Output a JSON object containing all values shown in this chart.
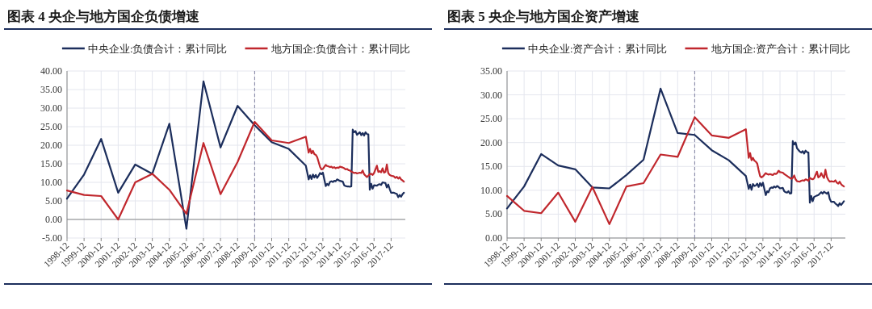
{
  "chart_data": [
    {
      "type": "line",
      "title": "图表 4 央企与地方国企负债增速",
      "legend": "top",
      "grid": true,
      "x": [
        "1998-12",
        "1999-12",
        "2000-12",
        "2001-12",
        "2002-12",
        "2003-12",
        "2004-12",
        "2005-12",
        "2006-12",
        "2007-12",
        "2008-12",
        "2009-12",
        "2010-12",
        "2011-12",
        "2012-12",
        "2013-02",
        "2013-03",
        "2013-04",
        "2013-05",
        "2013-06",
        "2013-07",
        "2013-08",
        "2013-09",
        "2013-10",
        "2013-11",
        "2013-12",
        "2014-02",
        "2014-03",
        "2014-04",
        "2014-05",
        "2014-06",
        "2014-07",
        "2014-08",
        "2014-09",
        "2014-10",
        "2014-11",
        "2014-12",
        "2015-02",
        "2015-03",
        "2015-04",
        "2015-05",
        "2015-06",
        "2015-07",
        "2015-08",
        "2015-09",
        "2015-10",
        "2015-11",
        "2015-12",
        "2016-02",
        "2016-03",
        "2016-04",
        "2016-05",
        "2016-06",
        "2016-07",
        "2016-08",
        "2016-09",
        "2016-10",
        "2016-11",
        "2016-12",
        "2017-02",
        "2017-03",
        "2017-04",
        "2017-05",
        "2017-06",
        "2017-07",
        "2017-08",
        "2017-09",
        "2017-10",
        "2017-11",
        "2017-12",
        "2018-02",
        "2018-03",
        "2018-04",
        "2018-05",
        "2018-06",
        "2018-07",
        "2018-08",
        "2018-09"
      ],
      "series": [
        {
          "name": "中央企业:负债合计：累计同比",
          "color": "#1c2e5c",
          "values": [
            5.6,
            12.1,
            21.7,
            7.2,
            14.8,
            12.3,
            25.8,
            -2.5,
            37.2,
            19.4,
            30.6,
            25.4,
            20.8,
            19.0,
            14.5,
            10.8,
            11.9,
            10.9,
            12.1,
            11.3,
            12.0,
            11.2,
            11.8,
            12.5,
            12.2,
            12.6,
            9.0,
            9.6,
            9.2,
            10.1,
            10.3,
            10.1,
            10.4,
            10.3,
            10.8,
            10.6,
            10.4,
            10.2,
            9.2,
            9.0,
            8.9,
            8.9,
            8.8,
            8.9,
            24.2,
            23.5,
            23.8,
            22.8,
            23.5,
            22.7,
            23.3,
            22.6,
            23.5,
            23.0,
            22.9,
            8.0,
            9.6,
            8.3,
            9.2,
            9.1,
            9.4,
            9.5,
            9.3,
            10.0,
            9.9,
            9.8,
            8.6,
            9.4,
            8.2,
            7.2,
            7.2,
            7.0,
            6.9,
            6.0,
            6.6,
            6.1,
            6.8,
            7.2
          ]
        },
        {
          "name": "地方国企:负债合计：累计同比",
          "color": "#c0272d",
          "values": [
            7.8,
            6.6,
            6.3,
            0.0,
            10.0,
            12.3,
            8.0,
            1.5,
            20.6,
            6.8,
            15.5,
            26.3,
            21.3,
            20.6,
            22.3,
            18.0,
            19.0,
            17.8,
            18.5,
            17.6,
            17.4,
            16.8,
            15.5,
            14.2,
            13.5,
            13.6,
            14.7,
            14.4,
            14.3,
            14.1,
            14.2,
            13.9,
            14.1,
            13.8,
            14.0,
            13.9,
            14.2,
            14.0,
            13.8,
            13.5,
            13.6,
            13.3,
            13.2,
            12.9,
            12.7,
            12.5,
            12.6,
            12.4,
            12.6,
            12.5,
            13.2,
            12.2,
            11.8,
            11.4,
            11.8,
            12.2,
            12.3,
            12.0,
            12.5,
            14.5,
            12.8,
            13.0,
            12.7,
            13.8,
            12.6,
            12.8,
            14.8,
            12.5,
            12.0,
            11.8,
            11.6,
            11.2,
            11.5,
            11.0,
            11.4,
            10.8,
            10.5,
            10.2
          ]
        }
      ],
      "xlim": [
        "1998-12",
        "2018-10"
      ],
      "xticks": [
        {
          "value": "1998-12",
          "label": "1998-12"
        },
        {
          "value": "1999-12",
          "label": "1999-12"
        },
        {
          "value": "2000-12",
          "label": "2000-12"
        },
        {
          "value": "2001-12",
          "label": "2001-12"
        },
        {
          "value": "2002-12",
          "label": "2002-12"
        },
        {
          "value": "2003-12",
          "label": "2003-12"
        },
        {
          "value": "2004-12",
          "label": "2004-12"
        },
        {
          "value": "2005-12",
          "label": "2005-12"
        },
        {
          "value": "2006-12",
          "label": "2006-12"
        },
        {
          "value": "2007-12",
          "label": "2007-12"
        },
        {
          "value": "2008-12",
          "label": "2008-12"
        },
        {
          "value": "2009-12",
          "label": "2009-12"
        },
        {
          "value": "2010-12",
          "label": "2010-12"
        },
        {
          "value": "2011-12",
          "label": "2011-12"
        },
        {
          "value": "2012-12",
          "label": "2012-12"
        },
        {
          "value": "2013-12",
          "label": "2013-12"
        },
        {
          "value": "2014-12",
          "label": "2014-12"
        },
        {
          "value": "2015-12",
          "label": "2015-12"
        },
        {
          "value": "2016-12",
          "label": "2016-12"
        },
        {
          "value": "2017-12",
          "label": "2017-12"
        }
      ],
      "ylim": [
        -5,
        40
      ],
      "yticks": [
        {
          "value": -5,
          "label": "-5.00"
        },
        {
          "value": 0,
          "label": "0.00"
        },
        {
          "value": 5,
          "label": "5.00"
        },
        {
          "value": 10,
          "label": "10.00"
        },
        {
          "value": 15,
          "label": "15.00"
        },
        {
          "value": 20,
          "label": "20.00"
        },
        {
          "value": 25,
          "label": "25.00"
        },
        {
          "value": 30,
          "label": "30.00"
        },
        {
          "value": 35,
          "label": "35.00"
        },
        {
          "value": 40,
          "label": "40.00"
        }
      ],
      "ref_lines": [
        {
          "axis": "x",
          "value": "2009-12",
          "color": "#8080a0",
          "line_style": "dashed"
        }
      ]
    },
    {
      "type": "line",
      "title": "图表 5 央企与地方国企资产增速",
      "legend": "top",
      "grid": true,
      "x": [
        "1998-12",
        "1999-12",
        "2000-12",
        "2001-12",
        "2002-12",
        "2003-12",
        "2004-12",
        "2005-12",
        "2006-12",
        "2007-12",
        "2008-12",
        "2009-12",
        "2010-12",
        "2011-12",
        "2012-12",
        "2013-02",
        "2013-03",
        "2013-04",
        "2013-05",
        "2013-06",
        "2013-07",
        "2013-08",
        "2013-09",
        "2013-10",
        "2013-11",
        "2013-12",
        "2014-02",
        "2014-03",
        "2014-04",
        "2014-05",
        "2014-06",
        "2014-07",
        "2014-08",
        "2014-09",
        "2014-10",
        "2014-11",
        "2014-12",
        "2015-02",
        "2015-03",
        "2015-04",
        "2015-05",
        "2015-06",
        "2015-07",
        "2015-08",
        "2015-09",
        "2015-10",
        "2015-11",
        "2015-12",
        "2016-02",
        "2016-03",
        "2016-04",
        "2016-05",
        "2016-06",
        "2016-07",
        "2016-08",
        "2016-09",
        "2016-10",
        "2016-11",
        "2016-12",
        "2017-02",
        "2017-03",
        "2017-04",
        "2017-05",
        "2017-06",
        "2017-07",
        "2017-08",
        "2017-09",
        "2017-10",
        "2017-11",
        "2017-12",
        "2018-02",
        "2018-03",
        "2018-04",
        "2018-05",
        "2018-06",
        "2018-07",
        "2018-08",
        "2018-09"
      ],
      "series": [
        {
          "name": "中央企业:资产合计：累计同比",
          "color": "#1c2e5c",
          "values": [
            6.2,
            10.8,
            17.6,
            15.2,
            14.4,
            10.6,
            10.4,
            13.2,
            16.4,
            31.3,
            22.0,
            21.6,
            18.4,
            16.3,
            13.0,
            10.3,
            11.2,
            10.1,
            11.3,
            10.9,
            11.0,
            11.4,
            10.7,
            11.5,
            10.9,
            11.6,
            9.0,
            9.8,
            9.6,
            10.4,
            10.6,
            10.5,
            10.8,
            10.6,
            10.9,
            10.7,
            10.4,
            10.5,
            9.8,
            9.6,
            9.5,
            9.8,
            9.3,
            9.4,
            20.3,
            19.6,
            20.0,
            18.8,
            18.1,
            17.9,
            18.2,
            17.7,
            18.3,
            18.0,
            17.9,
            7.4,
            8.8,
            7.7,
            8.6,
            8.9,
            9.0,
            9.3,
            9.6,
            9.3,
            9.7,
            9.5,
            9.3,
            9.6,
            8.2,
            7.6,
            7.6,
            7.2,
            7.0,
            6.7,
            7.3,
            6.9,
            7.3,
            7.7
          ]
        },
        {
          "name": "地方国企:资产合计：累计同比",
          "color": "#c0272d",
          "values": [
            8.8,
            5.7,
            5.2,
            9.5,
            3.4,
            10.7,
            2.9,
            10.8,
            11.5,
            17.5,
            17.0,
            25.3,
            21.5,
            21.0,
            22.8,
            16.8,
            17.8,
            16.3,
            16.8,
            16.2,
            16.0,
            15.6,
            14.2,
            13.0,
            12.7,
            12.9,
            13.6,
            13.4,
            13.3,
            13.4,
            13.3,
            13.2,
            13.5,
            13.4,
            13.6,
            14.1,
            13.8,
            13.7,
            13.4,
            13.2,
            13.0,
            12.8,
            12.6,
            12.4,
            12.6,
            13.1,
            12.3,
            11.9,
            11.8,
            12.0,
            12.1,
            12.0,
            12.3,
            12.2,
            12.0,
            12.6,
            12.4,
            12.3,
            12.5,
            13.9,
            12.7,
            12.9,
            13.6,
            13.0,
            12.6,
            14.3,
            12.8,
            12.2,
            11.8,
            11.9,
            11.8,
            12.1,
            11.6,
            11.4,
            11.8,
            11.3,
            11.0,
            10.8
          ]
        }
      ],
      "xlim": [
        "1998-12",
        "2018-10"
      ],
      "xticks": [
        {
          "value": "1998-12",
          "label": "1998-12"
        },
        {
          "value": "1999-12",
          "label": "1999-12"
        },
        {
          "value": "2000-12",
          "label": "2000-12"
        },
        {
          "value": "2001-12",
          "label": "2001-12"
        },
        {
          "value": "2002-12",
          "label": "2002-12"
        },
        {
          "value": "2003-12",
          "label": "2003-12"
        },
        {
          "value": "2004-12",
          "label": "2004-12"
        },
        {
          "value": "2005-12",
          "label": "2005-12"
        },
        {
          "value": "2006-12",
          "label": "2006-12"
        },
        {
          "value": "2007-12",
          "label": "2007-12"
        },
        {
          "value": "2008-12",
          "label": "2008-12"
        },
        {
          "value": "2009-12",
          "label": "2009-12"
        },
        {
          "value": "2010-12",
          "label": "2010-12"
        },
        {
          "value": "2011-12",
          "label": "2011-12"
        },
        {
          "value": "2012-12",
          "label": "2012-12"
        },
        {
          "value": "2013-12",
          "label": "2013-12"
        },
        {
          "value": "2014-12",
          "label": "2014-12"
        },
        {
          "value": "2015-12",
          "label": "2015-12"
        },
        {
          "value": "2016-12",
          "label": "2016-12"
        },
        {
          "value": "2017-12",
          "label": "2017-12"
        }
      ],
      "ylim": [
        0,
        35
      ],
      "yticks": [
        {
          "value": 0,
          "label": "0.00"
        },
        {
          "value": 5,
          "label": "5.00"
        },
        {
          "value": 10,
          "label": "10.00"
        },
        {
          "value": 15,
          "label": "15.00"
        },
        {
          "value": 20,
          "label": "20.00"
        },
        {
          "value": 25,
          "label": "25.00"
        },
        {
          "value": 30,
          "label": "30.00"
        },
        {
          "value": 35,
          "label": "35.00"
        }
      ],
      "ref_lines": [
        {
          "axis": "x",
          "value": "2009-12",
          "color": "#8080a0",
          "line_style": "dashed"
        }
      ]
    }
  ]
}
